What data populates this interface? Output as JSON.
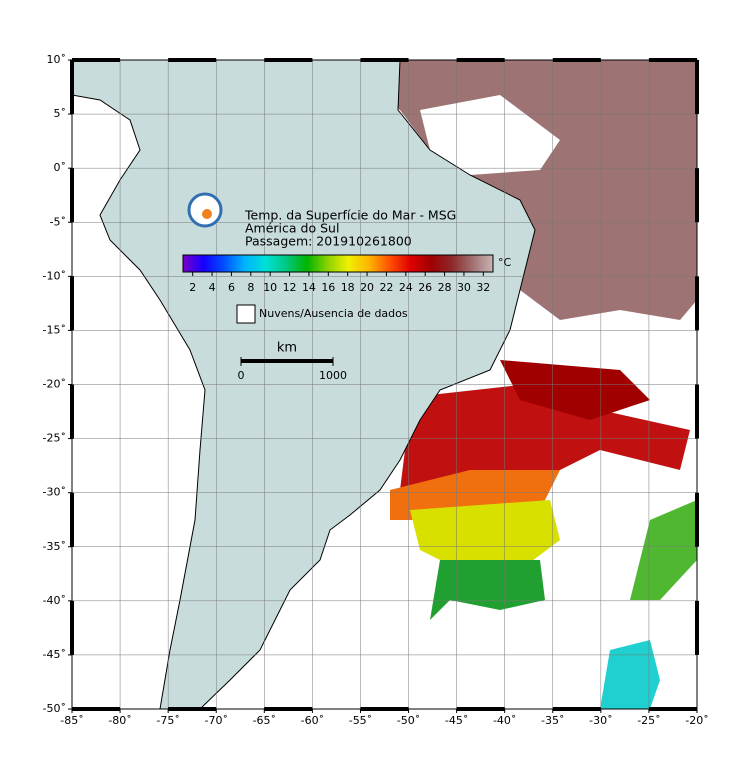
{
  "title_lines": [
    "Temp. da Superfície do Mar - MSG",
    "América do Sul",
    "Passagem: 201910261800"
  ],
  "colorbar": {
    "unit": "°C",
    "range": [
      1,
      33
    ],
    "ticks": [
      2,
      4,
      6,
      8,
      10,
      12,
      14,
      16,
      18,
      20,
      22,
      24,
      26,
      28,
      30,
      32
    ],
    "colors": [
      "#7a00c8",
      "#1400ff",
      "#0050ff",
      "#00b4ff",
      "#00e0d8",
      "#00c880",
      "#00b400",
      "#8cd200",
      "#f0f000",
      "#ffb400",
      "#ff5000",
      "#e00000",
      "#a00000",
      "#8c2828",
      "#a07070",
      "#c8b4b4"
    ]
  },
  "legend": {
    "label": "Nuvens/Ausencia de dados"
  },
  "scale_bar": {
    "unit": "km",
    "ticks": [
      0,
      1000
    ]
  },
  "map": {
    "lon_range": [
      -85,
      -20
    ],
    "lat_range": [
      10,
      -50
    ],
    "lon_ticks": [
      {
        "value": -85,
        "label": "-85˚"
      },
      {
        "value": -80,
        "label": "-80˚"
      },
      {
        "value": -75,
        "label": "-75˚"
      },
      {
        "value": -70,
        "label": "-70˚"
      },
      {
        "value": -65,
        "label": "-65˚"
      },
      {
        "value": -60,
        "label": "-60˚"
      },
      {
        "value": -55,
        "label": "-55˚"
      },
      {
        "value": -50,
        "label": "-50˚"
      },
      {
        "value": -45,
        "label": "-45˚"
      },
      {
        "value": -40,
        "label": "-40˚"
      },
      {
        "value": -35,
        "label": "-35˚"
      },
      {
        "value": -30,
        "label": "-30˚"
      },
      {
        "value": -25,
        "label": "-25˚"
      },
      {
        "value": -20,
        "label": "-20˚"
      }
    ],
    "lat_ticks": [
      {
        "value": 10,
        "label": "10˚"
      },
      {
        "value": 5,
        "label": "5˚"
      },
      {
        "value": 0,
        "label": "0˚"
      },
      {
        "value": -5,
        "label": "-5˚"
      },
      {
        "value": -10,
        "label": "-10˚"
      },
      {
        "value": -15,
        "label": "-15˚"
      },
      {
        "value": -20,
        "label": "-20˚"
      },
      {
        "value": -25,
        "label": "-25˚"
      },
      {
        "value": -30,
        "label": "-30˚"
      },
      {
        "value": -35,
        "label": "-35˚"
      },
      {
        "value": -40,
        "label": "-40˚"
      },
      {
        "value": -45,
        "label": "-45˚"
      },
      {
        "value": -50,
        "label": "-50˚"
      }
    ]
  }
}
